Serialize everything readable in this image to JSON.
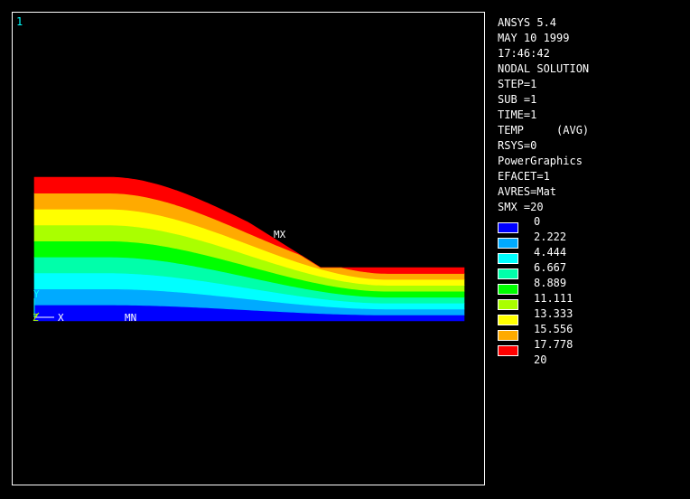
{
  "window": {
    "number": "1"
  },
  "info": {
    "lines": [
      "ANSYS 5.4",
      "MAY 10 1999",
      "17:46:42",
      "NODAL SOLUTION",
      "STEP=1",
      "SUB =1",
      "TIME=1",
      "TEMP     (AVG)",
      "RSYS=0",
      "PowerGraphics",
      "EFACET=1",
      "AVRES=Mat",
      "SMX =20"
    ]
  },
  "legend": {
    "levels": [
      {
        "label": "0",
        "color": "#0000ff"
      },
      {
        "label": "2.222",
        "color": "#00aaff"
      },
      {
        "label": "4.444",
        "color": "#00ffff"
      },
      {
        "label": "6.667",
        "color": "#00ffaa"
      },
      {
        "label": "8.889",
        "color": "#00ff00"
      },
      {
        "label": "11.111",
        "color": "#aaff00"
      },
      {
        "label": "13.333",
        "color": "#ffff00"
      },
      {
        "label": "15.556",
        "color": "#ffaa00"
      },
      {
        "label": "17.778",
        "color": "#ff0000"
      },
      {
        "label": "20",
        "color": ""
      }
    ]
  },
  "plot": {
    "max_label": "MX",
    "min_label": "MN",
    "axis_x_label": "X",
    "axis_y_label": "Y",
    "axis_z_label": "Z",
    "axis_colors": {
      "x": "#ffffff",
      "y": "#00ffff",
      "z": "#aaff00"
    }
  }
}
